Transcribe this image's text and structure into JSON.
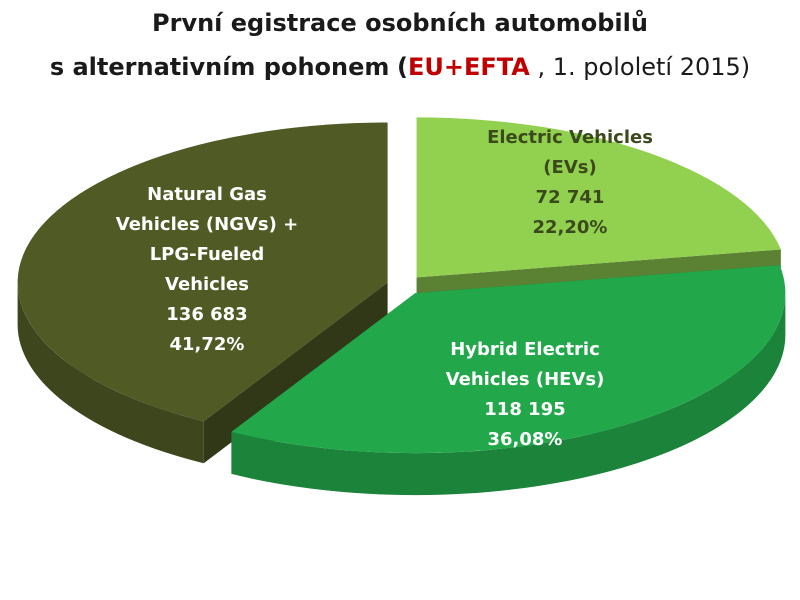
{
  "chart_data": {
    "type": "pie",
    "title_line_1": "První egistrace osobních automobilů",
    "title_line_2_prefix": "s alternativním pohonem",
    "title_line_2_open": "(",
    "title_line_2_region": "EU+EFTA",
    "title_line_2_period": " , 1. pololetí 2015)",
    "three_d": true,
    "exploded": true,
    "legend": "none",
    "slices": [
      {
        "label_lines": [
          "Electric Vehicles",
          "(EVs)"
        ],
        "value": 72741,
        "value_text": "72 741",
        "percent": 22.2,
        "percent_text": "22,20%",
        "color": "#92d050",
        "text_color": "#3b4a1c"
      },
      {
        "label_lines": [
          "Hybrid Electric",
          "Vehicles (HEVs)"
        ],
        "value": 118195,
        "value_text": "118 195",
        "percent": 36.08,
        "percent_text": "36,08%",
        "color": "#22a84a",
        "text_color": "#ffffff"
      },
      {
        "label_lines": [
          "Natural Gas",
          "Vehicles (NGVs) +",
          "LPG-Fueled",
          "Vehicles"
        ],
        "value": 136683,
        "value_text": "136 683",
        "percent": 41.72,
        "percent_text": "41,72%",
        "color": "#4f5a25",
        "text_color": "#ffffff"
      }
    ]
  }
}
